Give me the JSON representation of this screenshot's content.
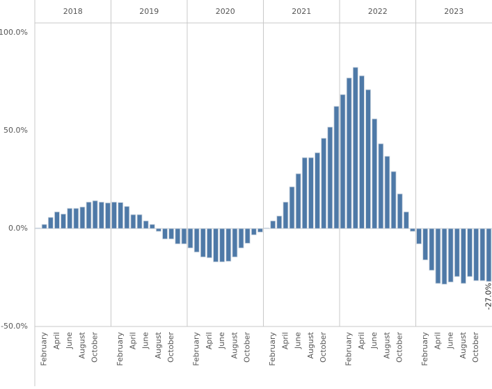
{
  "chart_data": {
    "type": "bar",
    "categories": [
      null,
      "February",
      null,
      "April",
      null,
      "June",
      null,
      "August",
      null,
      "October",
      null,
      null
    ],
    "series": [
      {
        "name": "2018",
        "color": "#4e79a7",
        "values": [
          0.3,
          2.1,
          5.7,
          8.5,
          7.4,
          10.3,
          10.3,
          11,
          13.5,
          14.2,
          13.5,
          13.1
        ]
      },
      {
        "name": "2019",
        "color": "#4e79a7",
        "values": [
          13.5,
          13.3,
          11.3,
          7.1,
          7.1,
          3.9,
          2.1,
          -1.4,
          -5.3,
          -5.3,
          -7.8,
          -7.8
        ]
      },
      {
        "name": "2020",
        "color": "#4e79a7",
        "values": [
          -9.9,
          -12,
          -14.5,
          -14.9,
          -17,
          -17,
          -16.7,
          -14.5,
          -9.9,
          -7.5,
          -3.2,
          -1.8
        ]
      },
      {
        "name": "2021",
        "color": "#4e79a7",
        "values": [
          0.3,
          3.9,
          6.4,
          13.5,
          21.3,
          28,
          36.2,
          36.2,
          38.7,
          46.1,
          51.8,
          62.4
        ]
      },
      {
        "name": "2022",
        "color": "#4e79a7",
        "values": [
          68.4,
          76.9,
          82.3,
          78,
          70.9,
          56,
          43.3,
          36.9,
          29.1,
          17.7,
          8.5,
          -1.4
        ]
      },
      {
        "name": "2023",
        "color": "#4e79a7",
        "values": [
          -7.8,
          -16,
          -21.3,
          -28,
          -28.4,
          -27.3,
          -24.5,
          -28,
          -24.5,
          -26.6,
          -26.6,
          -27.0
        ],
        "value_labels": [
          null,
          null,
          null,
          null,
          null,
          null,
          null,
          null,
          null,
          null,
          null,
          "-27.0%"
        ]
      }
    ],
    "ylim": [
      -50,
      105
    ],
    "yticks": [
      {
        "value": -50,
        "label": "-50.0%"
      },
      {
        "value": 0,
        "label": "0.0%"
      },
      {
        "value": 50,
        "label": "50.0%"
      },
      {
        "value": 100,
        "label": "100.0%"
      }
    ]
  }
}
